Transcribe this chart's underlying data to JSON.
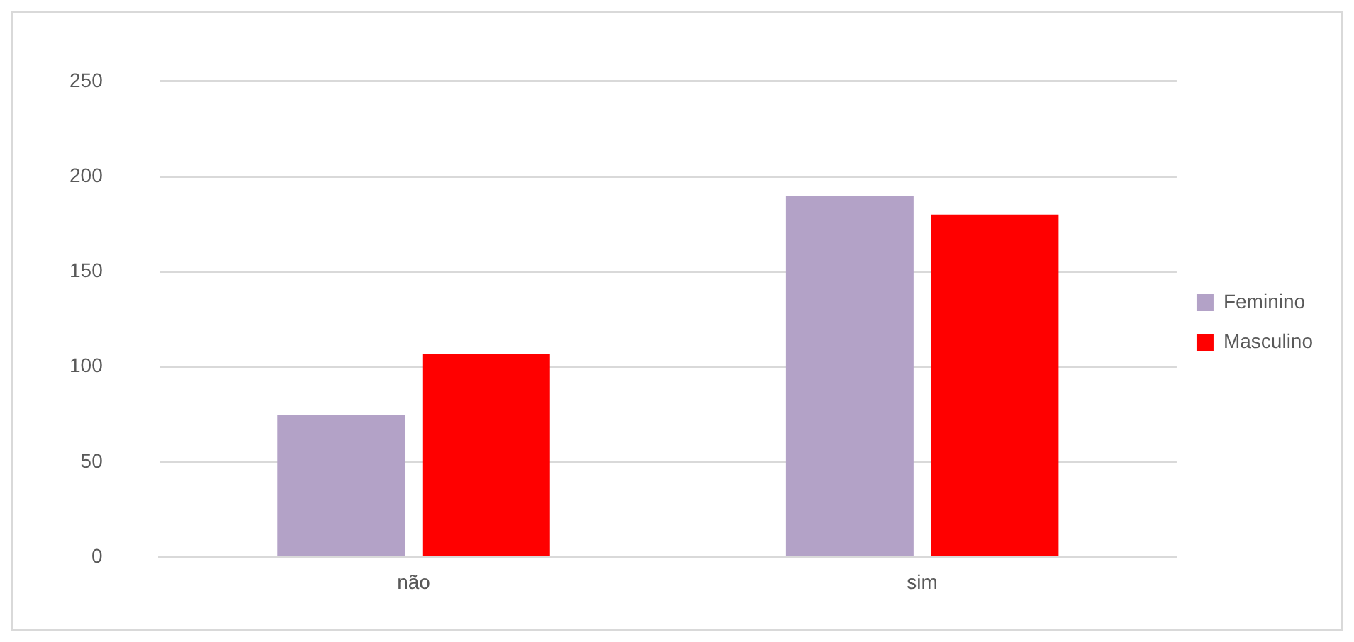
{
  "chart_data": {
    "type": "bar",
    "categories": [
      "não",
      "sim"
    ],
    "series": [
      {
        "name": "Feminino",
        "color": "#b3a2c7",
        "values": [
          75,
          190
        ]
      },
      {
        "name": "Masculino",
        "color": "#ff0000",
        "values": [
          107,
          180
        ]
      }
    ],
    "ylim": [
      0,
      250
    ],
    "yticks": [
      0,
      50,
      100,
      150,
      200,
      250
    ],
    "grid": "y",
    "legend": "right"
  }
}
